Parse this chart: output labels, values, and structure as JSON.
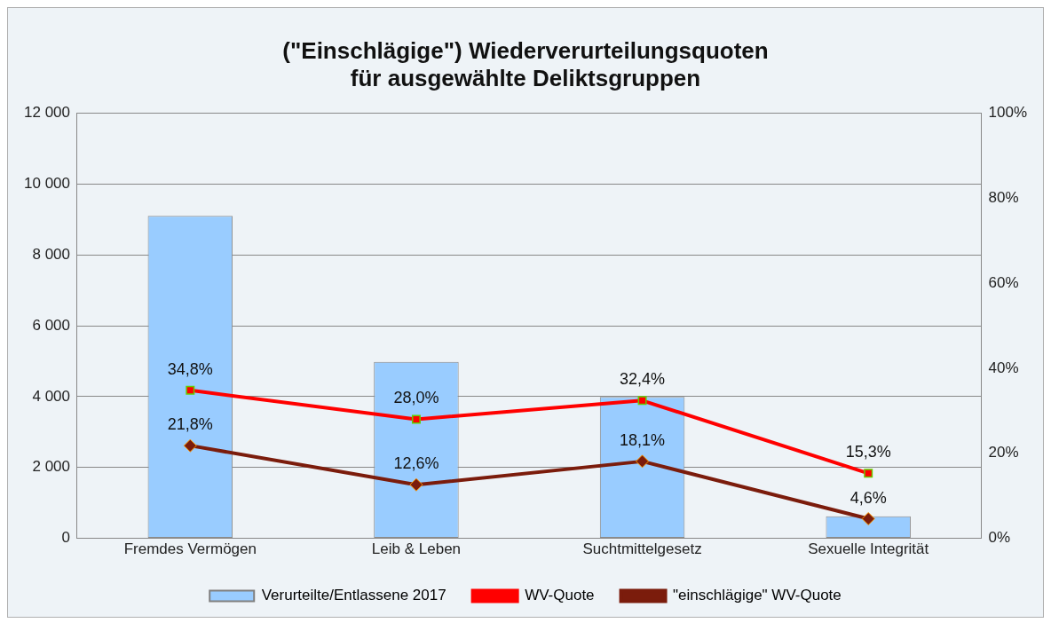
{
  "chart_data": {
    "type": "bar",
    "title": "(\"Einschlägige\") Wiederverurteilungsquoten\nfür ausgewählte Deliktsgruppen",
    "categories": [
      "Fremdes Vermögen",
      "Leib & Leben",
      "Suchtmittelgesetz",
      "Sexuelle Integrität"
    ],
    "series": [
      {
        "name": "Verurteilte/Entlassene 2017",
        "color": "#99ccff",
        "values": [
          9100,
          4980,
          3990,
          620
        ]
      },
      {
        "name": "WV-Quote",
        "type": "line",
        "axis": "y2",
        "color": "#ff0000",
        "marker": "square",
        "values": [
          34.8,
          28.0,
          32.4,
          15.3
        ],
        "value_labels": [
          "34,8%",
          "28,0%",
          "32,4%",
          "15,3%"
        ]
      },
      {
        "name": "\"einschlägige\" WV-Quote",
        "type": "line",
        "axis": "y2",
        "color": "#7b1c0c",
        "marker": "diamond",
        "values": [
          21.8,
          12.6,
          18.1,
          4.6
        ],
        "value_labels": [
          "21,8%",
          "12,6%",
          "18,1%",
          "4,6%"
        ]
      }
    ],
    "ylim": [
      0,
      12000
    ],
    "yticks": [
      {
        "value": 0,
        "label": "0"
      },
      {
        "value": 2000,
        "label": "2 000"
      },
      {
        "value": 4000,
        "label": "4 000"
      },
      {
        "value": 6000,
        "label": "6 000"
      },
      {
        "value": 8000,
        "label": "8 000"
      },
      {
        "value": 10000,
        "label": "10 000"
      },
      {
        "value": 12000,
        "label": "12 000"
      }
    ],
    "y2lim": [
      0,
      100
    ],
    "y2ticks": [
      {
        "value": 0,
        "label": "0%"
      },
      {
        "value": 20,
        "label": "20%"
      },
      {
        "value": 40,
        "label": "40%"
      },
      {
        "value": 60,
        "label": "60%"
      },
      {
        "value": 80,
        "label": "80%"
      },
      {
        "value": 100,
        "label": "100%"
      }
    ],
    "grid": "y",
    "legend": "bottom"
  }
}
